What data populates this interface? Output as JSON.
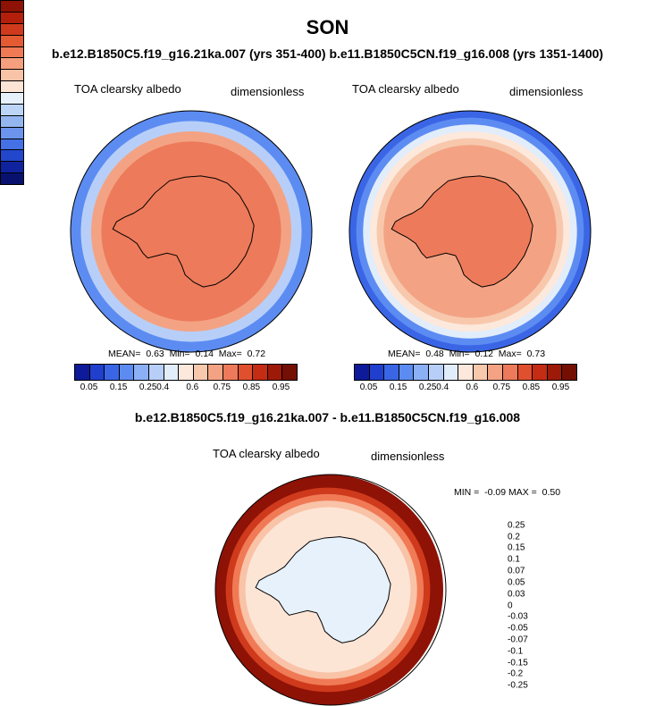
{
  "chart_data": [
    {
      "type": "heatmap",
      "projection": "polar-stereographic-south",
      "title": "b.e12.B1850C5.f19_g16.21ka.007 (yrs 351-400)",
      "variable_label": "TOA clearsky albedo",
      "units_label": "dimensionless",
      "stats": {
        "mean_label": "MEAN=",
        "mean": "0.63",
        "min_label": "Min=",
        "min": "0.14",
        "max_label": "Max=",
        "max": "0.72"
      },
      "rings": [
        0.16,
        0.25,
        0.6,
        0.65
      ],
      "continent": 0.72,
      "colorbar": {
        "colors": [
          "#0d1a9a",
          "#1f3fcc",
          "#3a66e6",
          "#5c8cf2",
          "#8bb0f5",
          "#b7cff8",
          "#e2edfb",
          "#fde8dc",
          "#f8c8ad",
          "#f3a384",
          "#ed7a5a",
          "#e0502f",
          "#c42c14",
          "#9d1a08",
          "#740f03"
        ],
        "labels": [
          "0.05",
          "0.15",
          "0.25",
          "0.4",
          "0.6",
          "0.75",
          "0.85",
          "0.95"
        ]
      }
    },
    {
      "type": "heatmap",
      "projection": "polar-stereographic-south",
      "title": "b.e11.B1850C5CN.f19_g16.008 (yrs 1351-1400)",
      "variable_label": "TOA clearsky albedo",
      "units_label": "dimensionless",
      "stats": {
        "mean_label": "MEAN=",
        "mean": "0.48",
        "min_label": "Min=",
        "min": "0.12",
        "max_label": "Max=",
        "max": "0.73"
      },
      "rings": [
        0.1,
        0.15,
        0.3,
        0.45,
        0.55,
        0.6
      ],
      "continent": 0.7,
      "colorbar": {
        "colors": [
          "#0d1a9a",
          "#1f3fcc",
          "#3a66e6",
          "#5c8cf2",
          "#8bb0f5",
          "#b7cff8",
          "#e2edfb",
          "#fde8dc",
          "#f8c8ad",
          "#f3a384",
          "#ed7a5a",
          "#e0502f",
          "#c42c14",
          "#9d1a08",
          "#740f03"
        ],
        "labels": [
          "0.05",
          "0.15",
          "0.25",
          "0.4",
          "0.6",
          "0.75",
          "0.85",
          "0.95"
        ]
      }
    },
    {
      "type": "heatmap",
      "projection": "polar-stereographic-south",
      "title": "b.e12.B1850C5.f19_g16.21ka.007 - b.e11.B1850C5CN.f19_g16.008",
      "variable_label": "TOA clearsky albedo",
      "units_label": "dimensionless",
      "stats": {
        "min_label": "MIN =",
        "min": "-0.09",
        "max_label": "MAX =",
        "max": "0.50"
      },
      "rings": [
        0.3,
        0.25,
        0.15,
        0.07,
        0.03,
        0.01
      ],
      "continent": -0.02,
      "colorbar": {
        "colors": [
          "#8e1205",
          "#b41f0b",
          "#cf3a1c",
          "#e45a33",
          "#f07a55",
          "#f59f7f",
          "#f9c3a8",
          "#fde5d6",
          "#e6f1fc",
          "#bcd4f6",
          "#93b6f1",
          "#6b94ec",
          "#4571e6",
          "#2247cc",
          "#0f239e",
          "#08126e"
        ],
        "labels": [
          "0.25",
          "0.2",
          "0.15",
          "0.1",
          "0.07",
          "0.05",
          "0.03",
          "0",
          "-0.03",
          "-0.05",
          "-0.07",
          "-0.1",
          "-0.15",
          "-0.2",
          "-0.25"
        ]
      }
    }
  ],
  "header": {
    "title": "SON",
    "subtitle": "b.e12.B1850C5.f19_g16.21ka.007 (yrs 351-400) b.e11.B1850C5CN.f19_g16.008 (yrs 1351-1400)",
    "diff_title": "b.e12.B1850C5.f19_g16.21ka.007 - b.e11.B1850C5CN.f19_g16.008"
  }
}
